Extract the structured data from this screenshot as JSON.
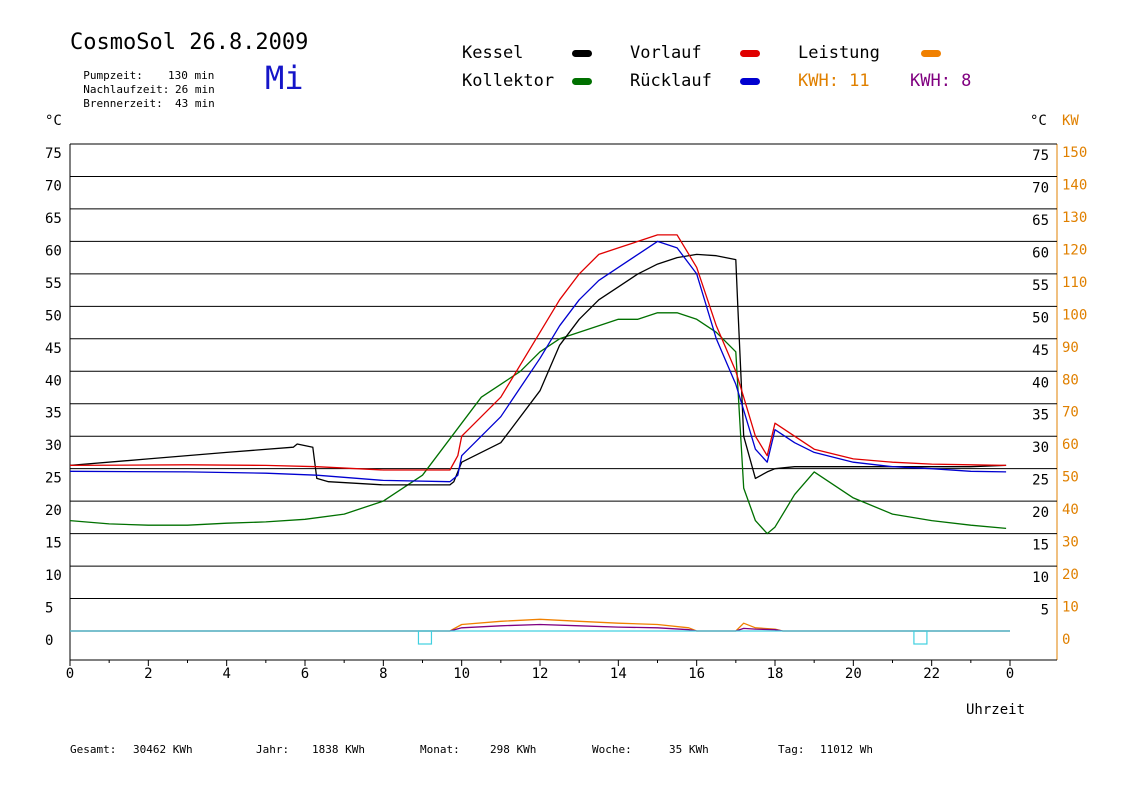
{
  "header": {
    "title": "CosmoSol 26.8.2009",
    "weekday": "Mi",
    "stats": [
      {
        "label": "Pumpzeit:",
        "value": "130 min"
      },
      {
        "label": "Nachlaufzeit:",
        "value": "26 min"
      },
      {
        "label": "Brennerzeit:",
        "value": "43 min"
      }
    ]
  },
  "legend": {
    "kessel": {
      "label": "Kessel",
      "color": "#000000"
    },
    "kollektor": {
      "label": "Kollektor",
      "color": "#007000"
    },
    "vorlauf": {
      "label": "Vorlauf",
      "color": "#e00000"
    },
    "ruecklauf": {
      "label": "Rücklauf",
      "color": "#0000d0"
    },
    "leistung": {
      "label": "Leistung",
      "color": "#f08000"
    },
    "kwh_orange": "KWH: 11",
    "kwh_purple": "KWH: 8",
    "kwh_orange_color": "#e08000",
    "kwh_purple_color": "#800080"
  },
  "axes": {
    "left_unit": "°C",
    "right_unit": "°C",
    "right_unit2": "KW",
    "xlabel": "Uhrzeit"
  },
  "footer": [
    {
      "label": "Gesamt:",
      "value": "30462 KWh"
    },
    {
      "label": "Jahr:",
      "value": "1838 KWh"
    },
    {
      "label": "Monat:",
      "value": "298 KWh"
    },
    {
      "label": "Woche:",
      "value": "35 KWh"
    },
    {
      "label": "Tag:",
      "value": "11012 Wh"
    }
  ],
  "chart_data": {
    "type": "line",
    "xlabel": "Uhrzeit",
    "ylabel": "°C",
    "y2label": "KW",
    "xlim": [
      0,
      24
    ],
    "ylim": [
      -5,
      75
    ],
    "x_ticks": [
      "0",
      "2",
      "4",
      "6",
      "8",
      "10",
      "12",
      "14",
      "16",
      "18",
      "20",
      "22",
      "0"
    ],
    "y_ticks": [
      0,
      5,
      10,
      15,
      20,
      25,
      30,
      35,
      40,
      45,
      50,
      55,
      60,
      65,
      70,
      75
    ],
    "y2_ticks": [
      "0",
      "10",
      "20",
      "30",
      "40",
      "50",
      "60",
      "70",
      "80",
      "90",
      "100",
      "110",
      "120",
      "130",
      "140",
      "150"
    ],
    "y2_inner_ticks": [
      "5",
      "10",
      "15",
      "20",
      "25",
      "30",
      "35",
      "40",
      "45",
      "50",
      "55",
      "60",
      "65",
      "70",
      "75"
    ],
    "grid": true,
    "legend_position": "top",
    "series": [
      {
        "name": "Kessel",
        "color": "#000000",
        "x": [
          0,
          2,
          4,
          5.7,
          5.8,
          6.2,
          6.3,
          6.6,
          8,
          9.7,
          9.8,
          10,
          11,
          12,
          12.5,
          13,
          13.5,
          14,
          14.5,
          15,
          15.5,
          16,
          16.5,
          17,
          17.05,
          17.2,
          17.5,
          17.8,
          18,
          18.5,
          19,
          20,
          22,
          23,
          23.9
        ],
        "y": [
          25.5,
          26.5,
          27.5,
          28.3,
          28.8,
          28.3,
          23.5,
          23,
          22.5,
          22.5,
          23,
          26,
          29,
          37,
          44,
          48,
          51,
          53,
          55,
          56.5,
          57.5,
          58,
          57.8,
          57.2,
          50,
          30,
          23.5,
          24.5,
          25,
          25.3,
          25.3,
          25.3,
          25.3,
          25.3,
          25.5
        ]
      },
      {
        "name": "Vorlauf",
        "color": "#e00000",
        "x": [
          0,
          3,
          5,
          6.3,
          8,
          9.7,
          9.9,
          10,
          11,
          12,
          12.5,
          13,
          13.5,
          14,
          14.5,
          15,
          15.5,
          16,
          16.5,
          17,
          17.2,
          17.5,
          17.8,
          18,
          18.5,
          19,
          20,
          21,
          22,
          23,
          23.9
        ],
        "y": [
          25.5,
          25.6,
          25.5,
          25.3,
          24.8,
          24.8,
          27,
          30,
          36,
          46,
          51,
          55,
          58,
          59,
          60,
          61,
          61,
          56,
          47,
          40,
          36,
          30,
          27,
          32,
          30,
          28,
          26.5,
          26,
          25.7,
          25.6,
          25.5
        ]
      },
      {
        "name": "Rücklauf",
        "color": "#0000d0",
        "x": [
          0,
          3,
          5,
          6.3,
          8,
          9.7,
          9.9,
          10,
          11,
          12,
          12.5,
          13,
          13.5,
          14,
          14.5,
          15,
          15.5,
          16,
          16.5,
          17,
          17.2,
          17.5,
          17.8,
          18,
          18.5,
          19,
          20,
          21,
          22,
          23,
          23.9
        ],
        "y": [
          24.6,
          24.5,
          24.3,
          24,
          23.2,
          23,
          24,
          27,
          33,
          42,
          47,
          51,
          54,
          56,
          58,
          60,
          59,
          55,
          45,
          38,
          34,
          28,
          26,
          31,
          29,
          27.5,
          26,
          25.3,
          25,
          24.6,
          24.5
        ]
      },
      {
        "name": "Kollektor",
        "color": "#007000",
        "x": [
          0,
          1,
          2,
          3,
          4,
          5,
          6,
          7,
          8,
          9,
          9.5,
          9.75,
          10,
          10.5,
          11,
          11.5,
          12,
          12.5,
          13,
          13.5,
          14,
          14.5,
          15,
          15.5,
          16,
          16.5,
          17,
          17.2,
          17.5,
          17.8,
          18,
          18.5,
          19,
          20,
          21,
          22,
          23,
          23.9
        ],
        "y": [
          17,
          16.5,
          16.3,
          16.3,
          16.6,
          16.8,
          17.2,
          18,
          20,
          24,
          28,
          30,
          32,
          36,
          38,
          40,
          43,
          45,
          46,
          47,
          48,
          48,
          49,
          49,
          48,
          46,
          43,
          22,
          17,
          15,
          16,
          21,
          24.5,
          20.5,
          18,
          17,
          16.3,
          15.8
        ]
      },
      {
        "name": "Leistung",
        "color": "#f08000",
        "x": [
          0,
          9.7,
          10,
          11,
          12,
          13,
          14,
          15,
          15.8,
          16,
          17,
          17.2,
          17.5,
          18,
          18.2,
          24
        ],
        "y": [
          0,
          0,
          1,
          1.5,
          1.8,
          1.5,
          1.2,
          1.0,
          0.5,
          0,
          0,
          1.2,
          0.5,
          0.3,
          0,
          0
        ]
      },
      {
        "name": "KWH",
        "color": "#800080",
        "x": [
          0,
          9.7,
          10,
          11,
          12,
          13,
          14,
          15,
          15.8,
          16,
          17,
          17.2,
          17.5,
          18,
          18.2,
          24
        ],
        "y": [
          0,
          0,
          0.5,
          0.8,
          1.0,
          0.8,
          0.6,
          0.5,
          0.2,
          0,
          0,
          0.4,
          0.3,
          0.2,
          0,
          0
        ]
      },
      {
        "name": "Pumpe",
        "color": "#40d0e0",
        "x": [
          0,
          24
        ],
        "y": [
          0,
          0
        ]
      }
    ]
  }
}
